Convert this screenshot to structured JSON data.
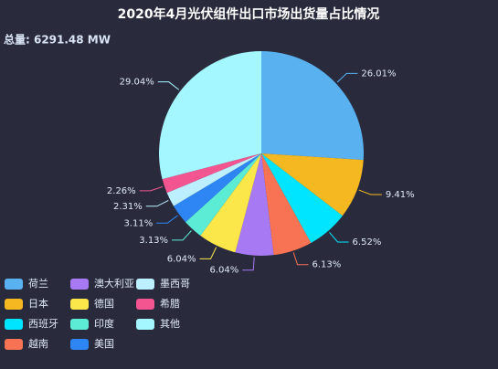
{
  "chart_data": {
    "type": "pie",
    "title": "2020年4月光伏组件出口市场出货量占比情况",
    "subtitle": "总量: 6291.48 MW",
    "categories": [
      "荷兰",
      "日本",
      "西班牙",
      "越南",
      "澳大利亚",
      "德国",
      "印度",
      "美国",
      "墨西哥",
      "希腊",
      "其他"
    ],
    "values": [
      26.01,
      9.41,
      6.52,
      6.13,
      6.04,
      6.04,
      3.13,
      3.11,
      2.31,
      2.26,
      29.04
    ],
    "value_labels": [
      "26.01%",
      "9.41%",
      "6.52%",
      "6.13%",
      "6.04%",
      "6.04%",
      "3.13%",
      "3.11%",
      "2.31%",
      "2.26%",
      "29.04%"
    ],
    "colors": [
      "#5ab1ef",
      "#f5b820",
      "#00e5ff",
      "#f87353",
      "#a77af4",
      "#fbe74a",
      "#5cebd5",
      "#2e86f5",
      "#bcefff",
      "#f2558f",
      "#a4f6ff"
    ]
  }
}
